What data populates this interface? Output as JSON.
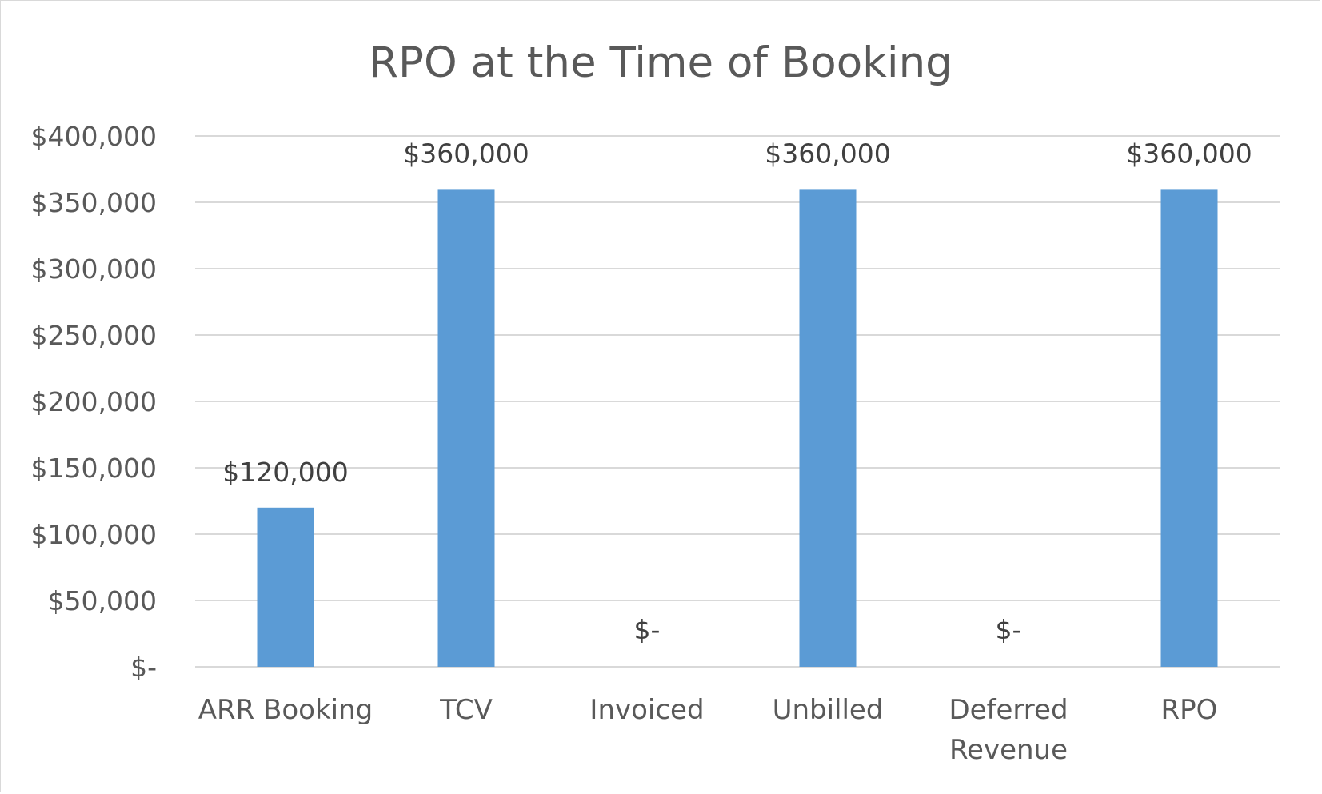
{
  "chart_data": {
    "type": "bar",
    "title": "RPO at the Time of Booking",
    "categories": [
      "ARR Booking",
      "TCV",
      "Invoiced",
      "Unbilled",
      "Deferred Revenue",
      "RPO"
    ],
    "category_label_lines": [
      [
        "ARR Booking"
      ],
      [
        "TCV"
      ],
      [
        "Invoiced"
      ],
      [
        "Unbilled"
      ],
      [
        "Deferred",
        "Revenue"
      ],
      [
        "RPO"
      ]
    ],
    "values": [
      120000,
      360000,
      0,
      360000,
      0,
      360000
    ],
    "data_labels": [
      "$120,000",
      "$360,000",
      "$-",
      "$360,000",
      "$-",
      "$360,000"
    ],
    "ylim": [
      0,
      400000
    ],
    "yticks": [
      0,
      50000,
      100000,
      150000,
      200000,
      250000,
      300000,
      350000,
      400000
    ],
    "ytick_labels": [
      "$-",
      "$50,000",
      "$100,000",
      "$150,000",
      "$200,000",
      "$250,000",
      "$300,000",
      "$350,000",
      "$400,000"
    ],
    "grid": true,
    "legend": "none",
    "bar_color": "#5b9bd5"
  }
}
